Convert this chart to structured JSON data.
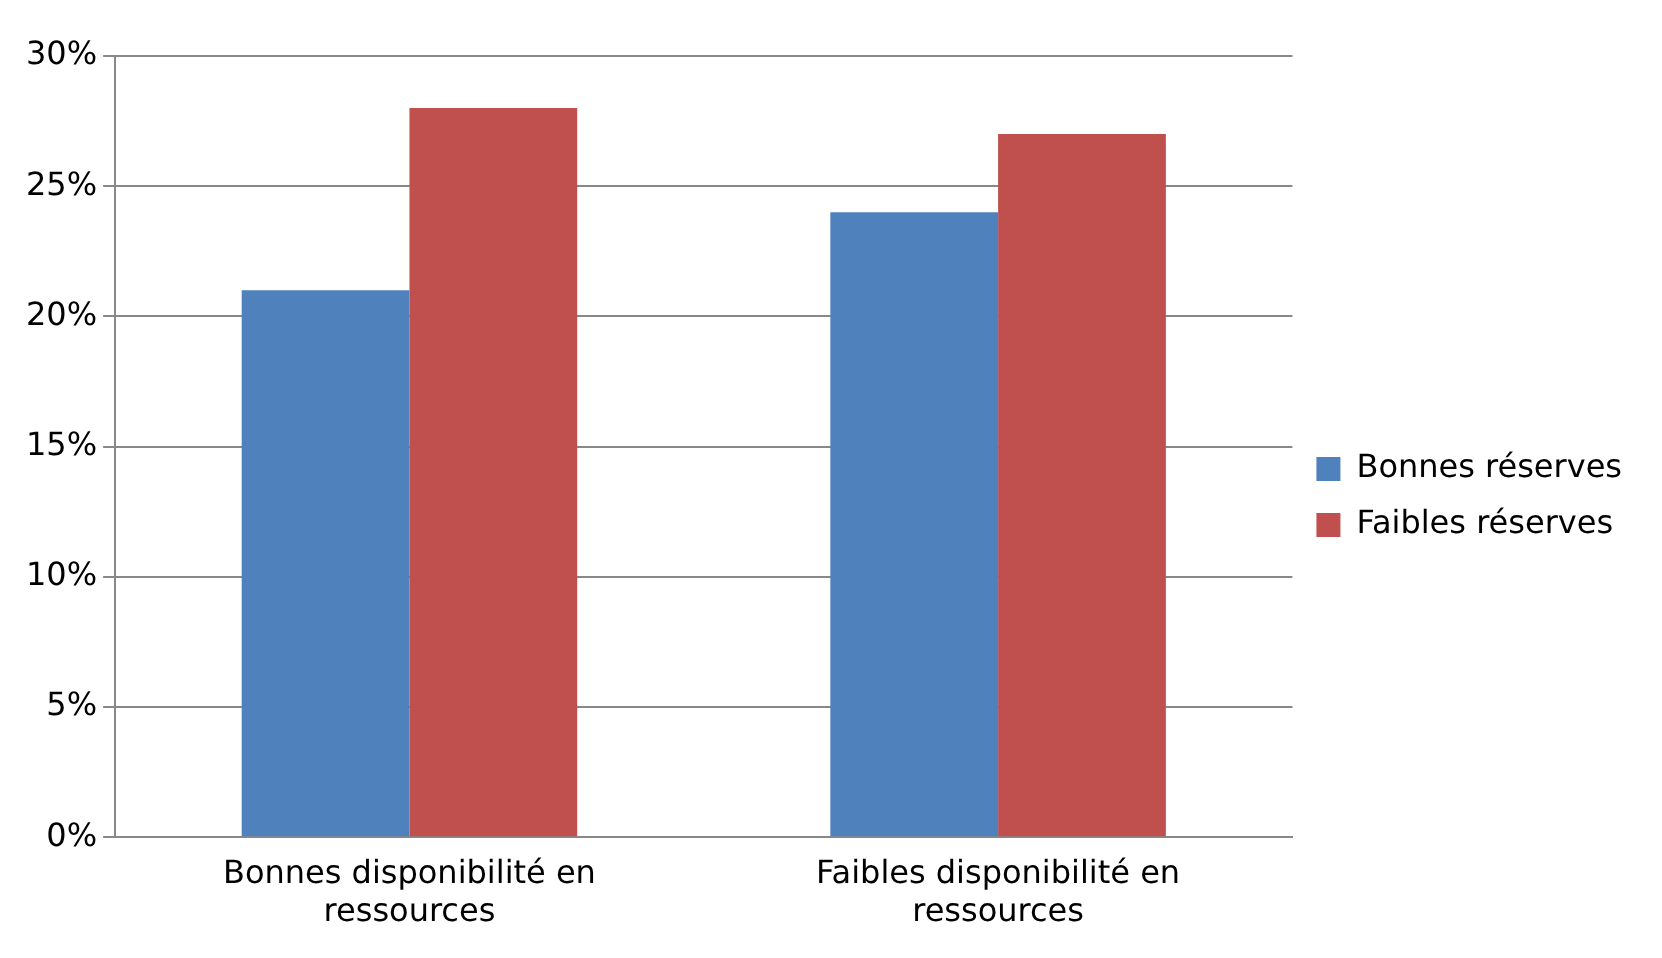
{
  "chart_data": {
    "type": "bar",
    "categories": [
      "Bonnes disponibilité en ressources",
      "Faibles disponibilité en ressources"
    ],
    "series": [
      {
        "name": "Bonnes réserves",
        "color": "#4f81bd",
        "values": [
          21,
          24
        ]
      },
      {
        "name": "Faibles réserves",
        "color": "#c0504d",
        "values": [
          28,
          27
        ]
      }
    ],
    "ylim": [
      0,
      30
    ],
    "yticks": [
      {
        "value": 0,
        "label": "0%"
      },
      {
        "value": 5,
        "label": "5%"
      },
      {
        "value": 10,
        "label": "10%"
      },
      {
        "value": 15,
        "label": "15%"
      },
      {
        "value": 20,
        "label": "20%"
      },
      {
        "value": 25,
        "label": "25%"
      },
      {
        "value": 30,
        "label": "30%"
      }
    ],
    "grid": "y",
    "legend": "right"
  }
}
